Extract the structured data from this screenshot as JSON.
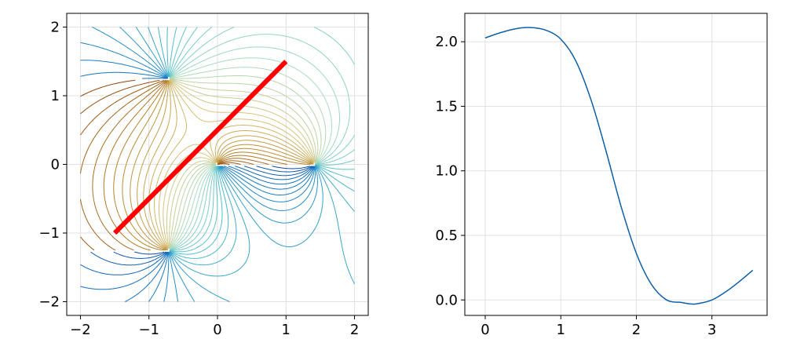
{
  "chart_data": [
    {
      "type": "contour",
      "title": "",
      "xlabel": "",
      "ylabel": "",
      "xlim": [
        -2.2,
        2.2
      ],
      "ylim": [
        -2.2,
        2.2
      ],
      "xticks": [
        -2,
        -1,
        0,
        1,
        2
      ],
      "xtick_labels": [
        "−2",
        "−1",
        "0",
        "1",
        "2"
      ],
      "yticks": [
        -2,
        -1,
        0,
        1,
        2
      ],
      "ytick_labels": [
        "−2",
        "−1",
        "0",
        "1",
        "2"
      ],
      "grid": true,
      "contour_domain": {
        "x": [
          -2,
          2
        ],
        "y": [
          -2,
          2
        ]
      },
      "contour_sources": [
        {
          "x": -0.71,
          "y": 1.25,
          "kind": "pole"
        },
        {
          "x": -0.71,
          "y": -1.25,
          "kind": "pole"
        },
        {
          "x": 0.0,
          "y": 0.0,
          "kind": "pole"
        },
        {
          "x": 1.42,
          "y": 0.0,
          "kind": "pole"
        }
      ],
      "contour_colormap": [
        "#8b3a00",
        "#b8862a",
        "#d8c47a",
        "#a9dcc0",
        "#4fbccb",
        "#1580c4",
        "#0a46a0"
      ],
      "segment": {
        "x": [
          -1.5,
          1.0
        ],
        "y": [
          -1.0,
          1.5
        ],
        "color": "#ff0000"
      }
    },
    {
      "type": "line",
      "title": "",
      "xlabel": "",
      "ylabel": "",
      "xlim": [
        -0.27,
        3.73
      ],
      "ylim": [
        -0.12,
        2.22
      ],
      "xticks": [
        0,
        1,
        2,
        3
      ],
      "xtick_labels": [
        "0",
        "1",
        "2",
        "3"
      ],
      "yticks": [
        0.0,
        0.5,
        1.0,
        1.5,
        2.0
      ],
      "ytick_labels": [
        "0.0",
        "0.5",
        "1.0",
        "1.5",
        "2.0"
      ],
      "grid": true,
      "series": [
        {
          "color": "#0a5fa8",
          "x": [
            0.0,
            0.2,
            0.4,
            0.6,
            0.8,
            1.0,
            1.2,
            1.4,
            1.6,
            1.8,
            2.0,
            2.2,
            2.4,
            2.6,
            2.7,
            2.8,
            3.0,
            3.2,
            3.4,
            3.54
          ],
          "y": [
            2.03,
            2.07,
            2.1,
            2.11,
            2.09,
            2.02,
            1.85,
            1.55,
            1.15,
            0.72,
            0.36,
            0.12,
            0.0,
            -0.02,
            -0.03,
            -0.03,
            0.0,
            0.07,
            0.16,
            0.23
          ]
        }
      ]
    }
  ]
}
